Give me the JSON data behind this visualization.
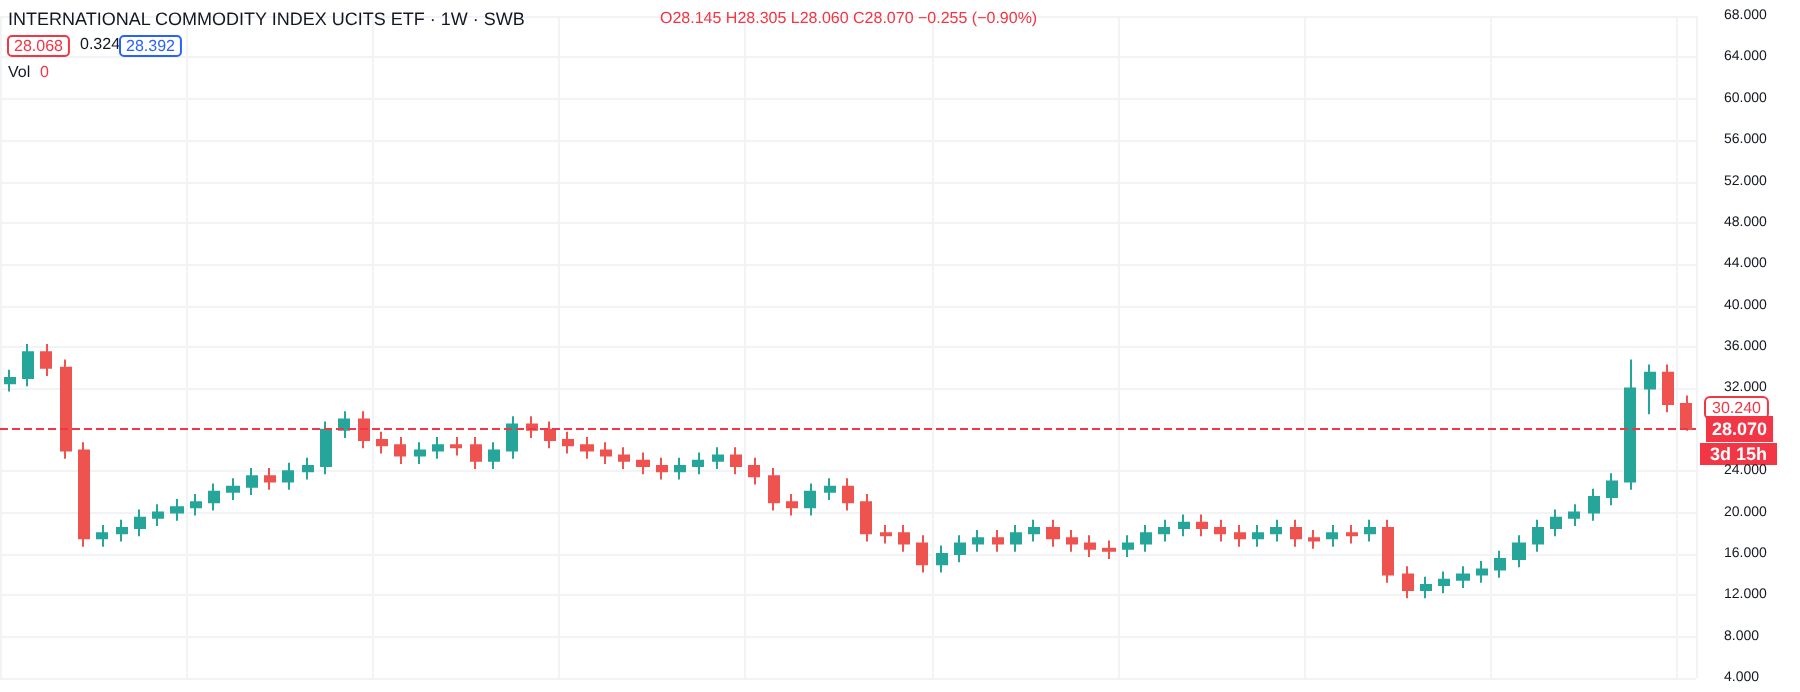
{
  "chart_data": {
    "type": "candlestick",
    "title": "INTERNATIONAL COMMODITY INDEX UCITS ETF · 1W · SWB",
    "annotations": [
      "O28.145 H28.305 L28.060 C28.070 −0.255 (−0.90%)",
      "28.068",
      "0.324",
      "28.392",
      "Vol",
      "0",
      "30.240",
      "3d 15h"
    ],
    "categories": [
      null,
      null,
      null,
      null,
      null,
      null,
      null,
      null,
      null,
      null,
      null,
      null,
      null,
      null,
      null,
      null,
      null,
      null,
      null,
      null,
      null,
      null,
      null,
      null,
      null,
      null,
      null,
      null,
      null,
      null,
      null,
      null,
      null,
      null,
      null,
      null,
      null,
      null,
      null,
      null,
      null,
      null,
      null,
      null,
      null,
      null,
      null,
      null,
      null,
      null,
      null,
      null,
      null,
      null,
      null,
      null,
      null,
      null,
      null,
      null,
      null,
      null,
      null,
      null,
      null,
      null,
      null,
      null,
      null,
      null,
      null,
      null,
      null,
      null,
      null,
      null,
      null,
      null,
      null,
      null,
      null,
      null,
      null,
      null,
      null,
      null,
      null,
      null,
      null,
      null,
      null
    ],
    "ohlc": [
      [
        32.5,
        33.8,
        31.7,
        33
      ],
      [
        33,
        36.3,
        32.2,
        35.5
      ],
      [
        35.5,
        36.3,
        33.2,
        34
      ],
      [
        34,
        34.8,
        25.2,
        26
      ],
      [
        26,
        26.8,
        16.7,
        17.5
      ],
      [
        17.5,
        18.8,
        16.7,
        18
      ],
      [
        18,
        19.3,
        17.2,
        18.5
      ],
      [
        18.5,
        20.3,
        17.7,
        19.5
      ],
      [
        19.5,
        20.8,
        18.7,
        20
      ],
      [
        20,
        21.3,
        19.2,
        20.5
      ],
      [
        20.5,
        21.8,
        19.7,
        21
      ],
      [
        21,
        22.8,
        20.2,
        22
      ],
      [
        22,
        23.3,
        21.2,
        22.5
      ],
      [
        22.5,
        24.3,
        21.7,
        23.5
      ],
      [
        23.5,
        24.3,
        22.2,
        23
      ],
      [
        23,
        24.8,
        22.2,
        24
      ],
      [
        24,
        25.3,
        23.2,
        24.5
      ],
      [
        24.5,
        28.8,
        23.7,
        28
      ],
      [
        28,
        29.8,
        27.2,
        29
      ],
      [
        29,
        29.8,
        26.2,
        27
      ],
      [
        27,
        27.8,
        25.7,
        26.5
      ],
      [
        26.5,
        27.3,
        24.7,
        25.5
      ],
      [
        25.5,
        26.8,
        24.7,
        26
      ],
      [
        26,
        27.3,
        25.2,
        26.5
      ],
      [
        26.5,
        27.3,
        25.5,
        26.3
      ],
      [
        26.5,
        27.3,
        24.2,
        25
      ],
      [
        25,
        26.8,
        24.2,
        26
      ],
      [
        26,
        29.3,
        25.2,
        28.5
      ],
      [
        28.5,
        29.3,
        27.2,
        28
      ],
      [
        28,
        28.8,
        26.2,
        27
      ],
      [
        27,
        27.8,
        25.7,
        26.5
      ],
      [
        26.5,
        27.3,
        25.2,
        26
      ],
      [
        26,
        26.8,
        24.7,
        25.5
      ],
      [
        25.5,
        26.3,
        24.2,
        25
      ],
      [
        25,
        25.8,
        23.7,
        24.5
      ],
      [
        24.5,
        25.3,
        23.2,
        24
      ],
      [
        24,
        25.3,
        23.2,
        24.5
      ],
      [
        24.5,
        25.8,
        23.7,
        25
      ],
      [
        25,
        26.3,
        24.2,
        25.5
      ],
      [
        25.5,
        26.3,
        23.7,
        24.5
      ],
      [
        24.5,
        25.3,
        22.7,
        23.5
      ],
      [
        23.5,
        24.3,
        20.2,
        21
      ],
      [
        21,
        21.8,
        19.7,
        20.5
      ],
      [
        20.5,
        22.8,
        19.7,
        22
      ],
      [
        22,
        23.3,
        21.2,
        22.5
      ],
      [
        22.5,
        23.3,
        20.2,
        21
      ],
      [
        21,
        21.8,
        17.2,
        18
      ],
      [
        18,
        18.8,
        17,
        17.8
      ],
      [
        18,
        18.8,
        16.2,
        17
      ],
      [
        17,
        17.8,
        14.2,
        15
      ],
      [
        15,
        16.8,
        14.2,
        16
      ],
      [
        16,
        17.8,
        15.2,
        17
      ],
      [
        17,
        18.3,
        16.2,
        17.5
      ],
      [
        17.5,
        18.3,
        16.2,
        17
      ],
      [
        17,
        18.8,
        16.2,
        18
      ],
      [
        18,
        19.3,
        17.2,
        18.5
      ],
      [
        18.5,
        19.3,
        16.7,
        17.5
      ],
      [
        17.5,
        18.3,
        16.2,
        17
      ],
      [
        17,
        17.8,
        15.7,
        16.5
      ],
      [
        16.5,
        17.3,
        15.5,
        16.3
      ],
      [
        16.5,
        17.8,
        15.7,
        17
      ],
      [
        17,
        18.8,
        16.2,
        18
      ],
      [
        18,
        19.3,
        17.2,
        18.5
      ],
      [
        18.5,
        19.8,
        17.7,
        19
      ],
      [
        19,
        19.8,
        17.7,
        18.5
      ],
      [
        18.5,
        19.3,
        17.2,
        18
      ],
      [
        18,
        18.8,
        16.7,
        17.5
      ],
      [
        17.5,
        18.8,
        16.7,
        18
      ],
      [
        18,
        19.3,
        17.2,
        18.5
      ],
      [
        18.5,
        19.3,
        16.7,
        17.5
      ],
      [
        17.5,
        18.3,
        16.5,
        17.3
      ],
      [
        17.5,
        18.8,
        16.7,
        18
      ],
      [
        18,
        18.8,
        17,
        17.8
      ],
      [
        18,
        19.3,
        17.2,
        18.5
      ],
      [
        18.5,
        19.3,
        13.2,
        14
      ],
      [
        14,
        14.8,
        11.7,
        12.5
      ],
      [
        12.5,
        13.8,
        11.7,
        13
      ],
      [
        13,
        14.3,
        12.2,
        13.5
      ],
      [
        13.5,
        14.8,
        12.7,
        14
      ],
      [
        14,
        15.3,
        13.2,
        14.5
      ],
      [
        14.5,
        16.3,
        13.7,
        15.5
      ],
      [
        15.5,
        17.8,
        14.7,
        17
      ],
      [
        17,
        19.3,
        16.2,
        18.5
      ],
      [
        18.5,
        20.3,
        17.7,
        19.5
      ],
      [
        19.5,
        20.8,
        18.7,
        20
      ],
      [
        20,
        22.3,
        19.2,
        21.5
      ],
      [
        21.5,
        23.8,
        20.7,
        23
      ],
      [
        23,
        34.8,
        22.2,
        32
      ],
      [
        32,
        34.3,
        29.5,
        33.5
      ],
      [
        33.5,
        34.3,
        29.7,
        30.5
      ],
      [
        30.5,
        31.3,
        27.9,
        28.07
      ]
    ],
    "colors": [
      "#26a69a",
      "#26a69a",
      "#ef5350",
      "#ef5350",
      "#ef5350",
      "#26a69a",
      "#26a69a",
      "#26a69a",
      "#26a69a",
      "#26a69a",
      "#26a69a",
      "#26a69a",
      "#26a69a",
      "#26a69a",
      "#ef5350",
      "#26a69a",
      "#26a69a",
      "#26a69a",
      "#26a69a",
      "#ef5350",
      "#ef5350",
      "#ef5350",
      "#26a69a",
      "#26a69a",
      "#ef5350",
      "#ef5350",
      "#26a69a",
      "#26a69a",
      "#ef5350",
      "#ef5350",
      "#ef5350",
      "#ef5350",
      "#ef5350",
      "#ef5350",
      "#ef5350",
      "#ef5350",
      "#26a69a",
      "#26a69a",
      "#26a69a",
      "#ef5350",
      "#ef5350",
      "#ef5350",
      "#ef5350",
      "#26a69a",
      "#26a69a",
      "#ef5350",
      "#ef5350",
      "#ef5350",
      "#ef5350",
      "#ef5350",
      "#26a69a",
      "#26a69a",
      "#26a69a",
      "#ef5350",
      "#26a69a",
      "#26a69a",
      "#ef5350",
      "#ef5350",
      "#ef5350",
      "#ef5350",
      "#26a69a",
      "#26a69a",
      "#26a69a",
      "#26a69a",
      "#ef5350",
      "#ef5350",
      "#ef5350",
      "#26a69a",
      "#26a69a",
      "#ef5350",
      "#ef5350",
      "#26a69a",
      "#ef5350",
      "#26a69a",
      "#ef5350",
      "#ef5350",
      "#26a69a",
      "#26a69a",
      "#26a69a",
      "#26a69a",
      "#26a69a",
      "#26a69a",
      "#26a69a",
      "#26a69a",
      "#26a69a",
      "#26a69a",
      "#26a69a",
      "#26a69a",
      "#26a69a",
      "#ef5350",
      "#ef5350"
    ],
    "ylim": [
      4,
      68
    ],
    "yticks": [
      {
        "value": 4,
        "label": "4.000"
      },
      {
        "value": 8,
        "label": "8.000"
      },
      {
        "value": 12,
        "label": "12.000"
      },
      {
        "value": 16,
        "label": "16.000"
      },
      {
        "value": 20,
        "label": "20.000"
      },
      {
        "value": 24,
        "label": "24.000"
      },
      {
        "value": 32,
        "label": "32.000"
      },
      {
        "value": 36,
        "label": "36.000"
      },
      {
        "value": 40,
        "label": "40.000"
      },
      {
        "value": 44,
        "label": "44.000"
      },
      {
        "value": 48,
        "label": "48.000"
      },
      {
        "value": 52,
        "label": "52.000"
      },
      {
        "value": 56,
        "label": "56.000"
      },
      {
        "value": 60,
        "label": "60.000"
      },
      {
        "value": 64,
        "label": "64.000"
      },
      {
        "value": 68,
        "label": "68.000"
      }
    ],
    "ref_lines": [
      {
        "axis": "y",
        "value": 28.07,
        "label": "28.070",
        "color": "#f23645",
        "line_style": "dashed"
      }
    ],
    "grid": true,
    "tick_labels": "y"
  }
}
